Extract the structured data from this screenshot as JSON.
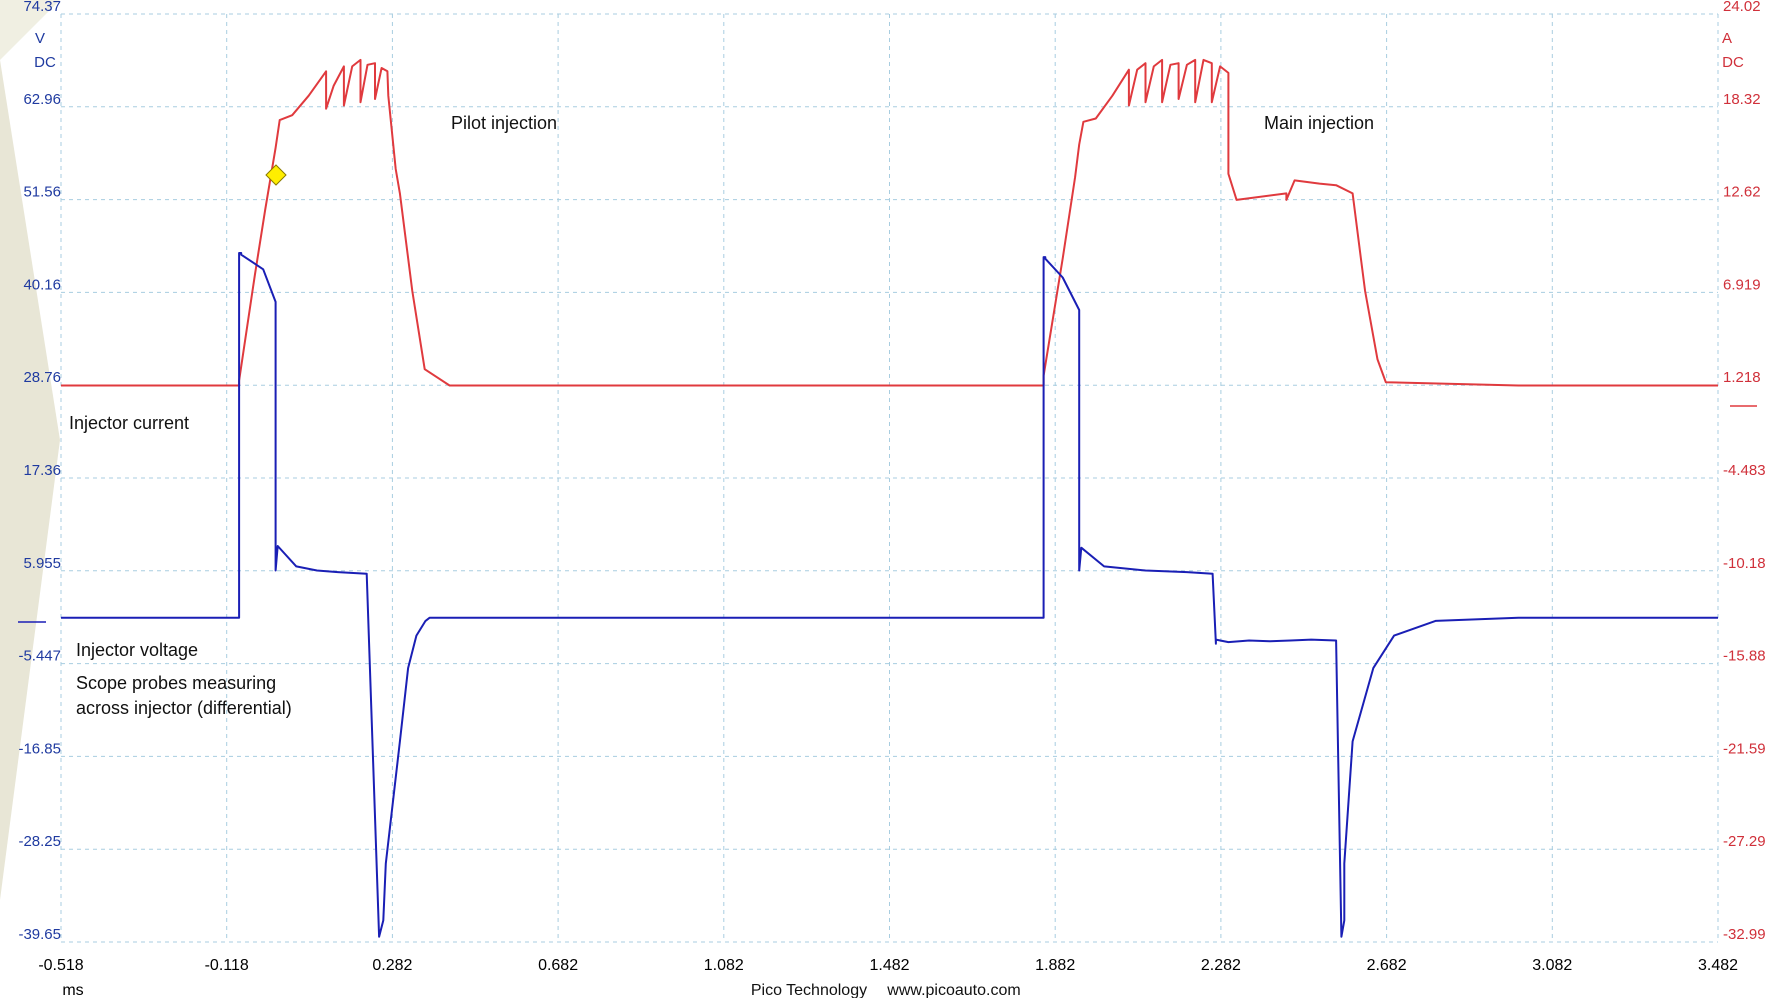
{
  "chart_data": {
    "type": "line",
    "title": "",
    "x_unit": "ms",
    "x_ticks": [
      "-0.518",
      "-0.118",
      "0.282",
      "0.682",
      "1.082",
      "1.482",
      "1.882",
      "2.282",
      "2.682",
      "3.082",
      "3.482"
    ],
    "xlim": [
      -0.518,
      3.482
    ],
    "left_axis": {
      "unit": "V",
      "coupling": "DC",
      "ticks": [
        "74.37",
        "62.96",
        "51.56",
        "40.16",
        "28.76",
        "17.36",
        "5.955",
        "-5.447",
        "-16.85",
        "-28.25",
        "-39.65"
      ],
      "ylim": [
        -39.65,
        74.37
      ],
      "color": "#1f3aa0"
    },
    "right_axis": {
      "unit": "A",
      "coupling": "DC",
      "ticks": [
        "24.02",
        "18.32",
        "12.62",
        "6.919",
        "1.218",
        "-4.483",
        "-10.18",
        "-15.88",
        "-21.59",
        "-27.29",
        "-32.99"
      ],
      "ylim": [
        -32.99,
        24.02
      ],
      "color": "#d0303a"
    },
    "grid": true,
    "series": [
      {
        "name": "Injector current",
        "color": "#e03a3e",
        "axis": "right",
        "x": [
          -0.518,
          -0.088,
          -0.088,
          -0.05,
          -0.025,
          0.0,
          0.01,
          0.04,
          0.08,
          0.122,
          0.122,
          0.14,
          0.165,
          0.165,
          0.185,
          0.205,
          0.205,
          0.222,
          0.24,
          0.24,
          0.256,
          0.27,
          0.272,
          0.29,
          0.3,
          0.33,
          0.36,
          0.42,
          0.5,
          0.9,
          1.3,
          1.854,
          1.854,
          1.9,
          1.93,
          1.94,
          1.95,
          1.98,
          2.02,
          2.06,
          2.06,
          2.08,
          2.1,
          2.1,
          2.12,
          2.14,
          2.14,
          2.16,
          2.18,
          2.18,
          2.2,
          2.22,
          2.22,
          2.24,
          2.26,
          2.26,
          2.28,
          2.3,
          2.3,
          2.32,
          2.44,
          2.44,
          2.46,
          2.52,
          2.56,
          2.6,
          2.62,
          2.63,
          2.66,
          2.68,
          3.0,
          3.482
        ],
        "y": [
          1.2,
          1.2,
          1.5,
          8.0,
          12.0,
          15.8,
          17.5,
          17.8,
          19.0,
          20.5,
          18.2,
          19.6,
          20.8,
          18.4,
          20.8,
          21.2,
          18.6,
          20.9,
          21.0,
          18.8,
          20.7,
          20.5,
          19.0,
          14.5,
          13.0,
          7.0,
          2.2,
          1.2,
          1.2,
          1.2,
          1.2,
          1.2,
          1.8,
          9.0,
          14.0,
          16.0,
          17.4,
          17.6,
          19.0,
          20.6,
          18.4,
          20.6,
          21.0,
          18.6,
          20.8,
          21.2,
          18.6,
          20.9,
          21.0,
          18.8,
          20.9,
          21.2,
          18.6,
          21.2,
          21.0,
          18.6,
          20.8,
          20.4,
          14.2,
          12.6,
          13.0,
          12.6,
          13.8,
          13.6,
          13.5,
          13.0,
          9.0,
          7.0,
          2.8,
          1.4,
          1.2,
          1.2
        ]
      },
      {
        "name": "Injector voltage",
        "color": "#1a1fb5",
        "axis": "left",
        "x": [
          -0.518,
          -0.088,
          -0.088,
          -0.083,
          -0.083,
          -0.03,
          0.0,
          0.0,
          0.005,
          0.05,
          0.1,
          0.15,
          0.22,
          0.25,
          0.26,
          0.266,
          0.3,
          0.32,
          0.34,
          0.362,
          0.372,
          0.38,
          0.39,
          0.43,
          0.5,
          0.6,
          0.8,
          1.2,
          1.6,
          1.854,
          1.854,
          1.858,
          1.858,
          1.9,
          1.94,
          1.94,
          1.945,
          2.0,
          2.1,
          2.2,
          2.262,
          2.27,
          2.27,
          2.3,
          2.35,
          2.4,
          2.45,
          2.5,
          2.56,
          2.573,
          2.58,
          2.58,
          2.6,
          2.65,
          2.7,
          2.8,
          3.0,
          3.482
        ],
        "y": [
          0.2,
          0.2,
          45.0,
          45.0,
          44.8,
          43.0,
          39.0,
          6.0,
          9.0,
          6.5,
          6.0,
          5.8,
          5.6,
          -39.0,
          -37.0,
          -30.0,
          -15.0,
          -6.0,
          -2.0,
          -0.2,
          0.2,
          0.2,
          0.2,
          0.2,
          0.2,
          0.2,
          0.2,
          0.2,
          0.2,
          0.2,
          44.5,
          44.5,
          44.3,
          42.0,
          38.0,
          6.0,
          8.8,
          6.5,
          6.0,
          5.8,
          5.6,
          -3.0,
          -2.5,
          -2.8,
          -2.6,
          -2.7,
          -2.6,
          -2.5,
          -2.6,
          -39.0,
          -37.0,
          -30.0,
          -15.0,
          -6.0,
          -2.0,
          -0.2,
          0.2,
          0.2
        ]
      }
    ],
    "annotations": [
      "Pilot injection",
      "Main injection",
      "Injector current",
      "Injector voltage",
      "Scope probes measuring",
      "across injector (differential)"
    ]
  },
  "footer": {
    "brand": "Pico Technology",
    "site": "www.picoauto.com"
  }
}
